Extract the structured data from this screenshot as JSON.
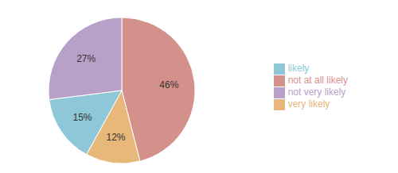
{
  "chart_data": {
    "type": "pie",
    "categories": [
      "not at all likely",
      "very likely",
      "likely",
      "not very likely"
    ],
    "values": [
      46,
      12,
      15,
      27
    ],
    "value_labels": [
      "46%",
      "12%",
      "15%",
      "27%"
    ],
    "colors": [
      "#d4908a",
      "#e8b87a",
      "#8ec8d8",
      "#b8a0c8"
    ],
    "data_labels": true,
    "legend": "right"
  }
}
